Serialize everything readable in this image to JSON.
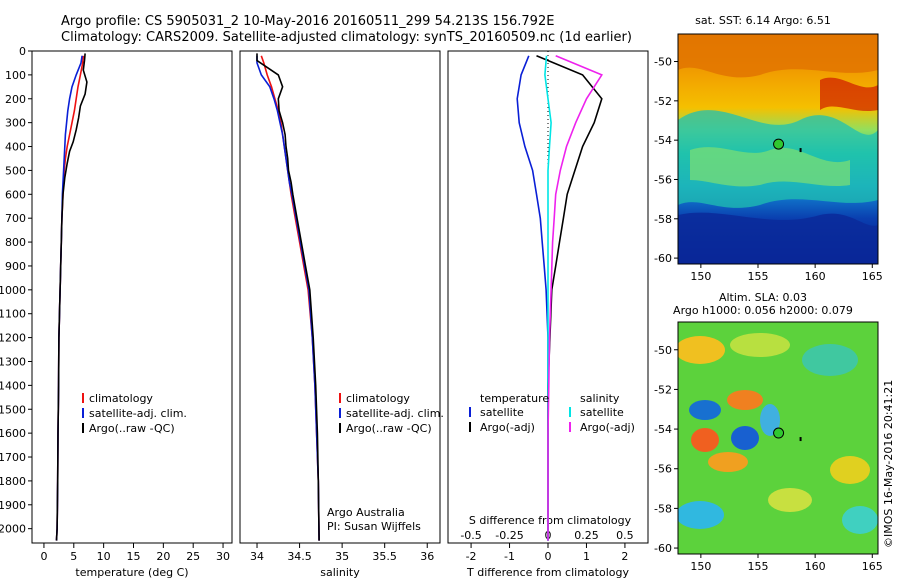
{
  "header": {
    "title_line1": "Argo profile: CS 5905031_2 10-May-2016 20160511_299 54.213S 156.792E",
    "title_line2": "Climatology: CARS2009. Satellite-adjusted climatology: synTS_20160509.nc (1d earlier)"
  },
  "credits": {
    "org": "Argo Australia",
    "pi": "PI: Susan Wijffels",
    "watermark": "©IMOS 16-May-2016 20:41:21"
  },
  "colors": {
    "climatology": "#ee1111",
    "satellite": "#0a1fd6",
    "argo": "#000000",
    "sal_satellite": "#00e5e5",
    "sal_argo": "#ee22ee"
  },
  "chart_data": [
    {
      "type": "line",
      "panel": "temperature",
      "xlabel": "temperature (deg C)",
      "ylabel": "",
      "xlim": [
        -2,
        31.5
      ],
      "ylim": [
        2060,
        0
      ],
      "xticks": [
        0,
        5,
        10,
        15,
        20,
        25,
        30
      ],
      "yticks": [
        0,
        100,
        200,
        300,
        400,
        500,
        600,
        700,
        800,
        900,
        1000,
        1100,
        1200,
        1300,
        1400,
        1500,
        1600,
        1700,
        1800,
        1900,
        2000
      ],
      "legend": [
        "climatology",
        "satellite-adj. clim.",
        "Argo(..raw -QC)"
      ],
      "legend_position": "lower-center",
      "series": [
        {
          "name": "climatology",
          "x": [
            6.6,
            6.5,
            6.1,
            5.7,
            5.4,
            5.1,
            4.7,
            4.3,
            3.9,
            3.6,
            3.4,
            3.2,
            3.0,
            2.9,
            2.8,
            2.7,
            2.5,
            2.45,
            2.35,
            2.3,
            2.25,
            2.2,
            2.1
          ],
          "y": [
            20,
            50,
            100,
            150,
            200,
            250,
            300,
            350,
            400,
            450,
            500,
            600,
            700,
            800,
            900,
            1000,
            1200,
            1400,
            1600,
            1800,
            1900,
            2000,
            2050
          ]
        },
        {
          "name": "satellite-adj. clim.",
          "x": [
            6.4,
            6.2,
            5.4,
            4.7,
            4.3,
            4.0,
            3.8,
            3.6,
            3.5,
            3.4,
            3.3,
            3.1,
            3.0,
            2.9,
            2.8,
            2.7,
            2.5,
            2.45,
            2.35,
            2.3,
            2.25,
            2.2,
            2.1
          ],
          "y": [
            20,
            50,
            100,
            150,
            200,
            250,
            300,
            350,
            400,
            450,
            500,
            600,
            700,
            800,
            900,
            1000,
            1200,
            1400,
            1600,
            1800,
            1900,
            2000,
            2050
          ]
        },
        {
          "name": "Argo(..raw -QC)",
          "x": [
            6.9,
            6.8,
            6.6,
            7.2,
            6.9,
            6.1,
            5.8,
            5.4,
            4.9,
            4.3,
            3.9,
            3.5,
            3.2,
            3.0,
            2.9,
            2.8,
            2.7,
            2.5,
            2.45,
            2.35,
            2.3,
            2.25,
            2.2,
            2.1
          ],
          "y": [
            10,
            40,
            80,
            130,
            180,
            230,
            280,
            330,
            380,
            420,
            470,
            530,
            600,
            700,
            800,
            900,
            1000,
            1200,
            1400,
            1600,
            1800,
            1900,
            2000,
            2050
          ]
        }
      ]
    },
    {
      "type": "line",
      "panel": "salinity",
      "xlabel": "salinity",
      "xlim": [
        33.8,
        36.15
      ],
      "ylim": [
        2060,
        0
      ],
      "xticks": [
        34,
        34.5,
        35,
        35.5,
        36
      ],
      "legend": [
        "climatology",
        "satellite-adj. clim.",
        "Argo(..raw -QC)"
      ],
      "legend_position": "lower-right",
      "series": [
        {
          "name": "climatology",
          "x": [
            34.05,
            34.08,
            34.12,
            34.17,
            34.21,
            34.25,
            34.28,
            34.3,
            34.32,
            34.34,
            34.36,
            34.38,
            34.4,
            34.45,
            34.5,
            34.55,
            34.6,
            34.65,
            34.68,
            34.7,
            34.72,
            34.73
          ],
          "y": [
            20,
            50,
            100,
            150,
            200,
            250,
            300,
            350,
            400,
            450,
            500,
            550,
            600,
            700,
            800,
            900,
            1000,
            1200,
            1400,
            1600,
            1800,
            2050
          ]
        },
        {
          "name": "satellite-adj. clim.",
          "x": [
            34.0,
            34.0,
            34.05,
            34.15,
            34.2,
            34.24,
            34.27,
            34.3,
            34.32,
            34.34,
            34.36,
            34.38,
            34.41,
            34.46,
            34.51,
            34.56,
            34.61,
            34.65,
            34.68,
            34.7,
            34.72,
            34.73
          ],
          "y": [
            20,
            50,
            100,
            150,
            200,
            250,
            300,
            350,
            400,
            450,
            500,
            550,
            600,
            700,
            800,
            900,
            1000,
            1200,
            1400,
            1600,
            1800,
            2050
          ]
        },
        {
          "name": "Argo(..raw -QC)",
          "x": [
            34.0,
            34.0,
            34.25,
            34.3,
            34.25,
            34.26,
            34.3,
            34.33,
            34.34,
            34.36,
            34.37,
            34.4,
            34.42,
            34.47,
            34.52,
            34.57,
            34.62,
            34.66,
            34.69,
            34.71,
            34.72,
            34.73
          ],
          "y": [
            10,
            40,
            100,
            150,
            200,
            250,
            300,
            350,
            400,
            450,
            500,
            550,
            600,
            700,
            800,
            900,
            1000,
            1200,
            1400,
            1600,
            1800,
            2050
          ]
        }
      ]
    },
    {
      "type": "line",
      "panel": "difference",
      "xlabel": "T difference from climatology",
      "title_bottom": "S difference from climatology",
      "xlim": [
        -2.6,
        2.6
      ],
      "ylim": [
        2060,
        0
      ],
      "xticks": [
        -2,
        -1,
        0,
        1,
        2
      ],
      "xticklabels": [
        "-2",
        "-1",
        "0",
        "1",
        "2"
      ],
      "sticks_labels": [
        "-0.5",
        "-0.25",
        "0",
        "0.25",
        "0.5"
      ],
      "legend_titles": [
        "temperature",
        "salinity"
      ],
      "legend": [
        "satellite",
        "Argo(-adj)",
        "satellite",
        "Argo(-adj)"
      ],
      "legend_position": "lower-center",
      "series": [
        {
          "name": "satellite",
          "group": "temperature",
          "x": [
            -0.5,
            -0.7,
            -0.8,
            -0.75,
            -0.6,
            -0.4,
            -0.3,
            -0.2,
            -0.15,
            -0.1,
            -0.05,
            0,
            0,
            0,
            0,
            0
          ],
          "y": [
            20,
            100,
            200,
            300,
            400,
            500,
            600,
            700,
            800,
            900,
            1000,
            1200,
            1400,
            1600,
            1800,
            2050
          ]
        },
        {
          "name": "Argo(-adj)",
          "group": "temperature",
          "x": [
            -0.3,
            0.9,
            1.4,
            1.2,
            0.9,
            0.7,
            0.5,
            0.4,
            0.3,
            0.2,
            0.1,
            0.05,
            0,
            0,
            0,
            0
          ],
          "y": [
            20,
            100,
            200,
            300,
            400,
            500,
            600,
            700,
            800,
            900,
            1000,
            1200,
            1400,
            1600,
            1800,
            2050
          ]
        },
        {
          "name": "satellite",
          "group": "salinity",
          "x": [
            -0.01,
            -0.02,
            0,
            0.02,
            0.01,
            0,
            0,
            0,
            0,
            0,
            0,
            0,
            0,
            0
          ],
          "y": [
            20,
            100,
            200,
            300,
            400,
            500,
            600,
            700,
            800,
            1000,
            1200,
            1400,
            1600,
            2050
          ]
        },
        {
          "name": "Argo(-adj)",
          "group": "salinity",
          "x": [
            0.05,
            0.35,
            0.25,
            0.18,
            0.12,
            0.08,
            0.05,
            0.04,
            0.03,
            0.02,
            0.01,
            0.005,
            0,
            0
          ],
          "y": [
            20,
            100,
            200,
            300,
            400,
            500,
            600,
            700,
            800,
            1000,
            1200,
            1400,
            1600,
            2050
          ]
        }
      ]
    },
    {
      "type": "heatmap",
      "panel": "sst_map",
      "title": "sat. SST: 6.14  Argo: 6.51",
      "xlim": [
        148,
        165.5
      ],
      "ylim": [
        -60.3,
        -48.6
      ],
      "xticks": [
        150,
        155,
        160,
        165
      ],
      "yticks": [
        -50,
        -52,
        -54,
        -56,
        -58,
        -60
      ],
      "marker": {
        "lon": 156.8,
        "lat": -54.2
      }
    },
    {
      "type": "heatmap",
      "panel": "sla_map",
      "title_line1": "Altim. SLA: 0.03",
      "title_line2": "Argo h1000: 0.056  h2000: 0.079",
      "xlim": [
        148,
        165.5
      ],
      "ylim": [
        -60.3,
        -48.6
      ],
      "xticks": [
        150,
        155,
        160,
        165
      ],
      "yticks": [
        -50,
        -52,
        -54,
        -56,
        -58,
        -60
      ],
      "marker": {
        "lon": 156.8,
        "lat": -54.2
      }
    }
  ]
}
